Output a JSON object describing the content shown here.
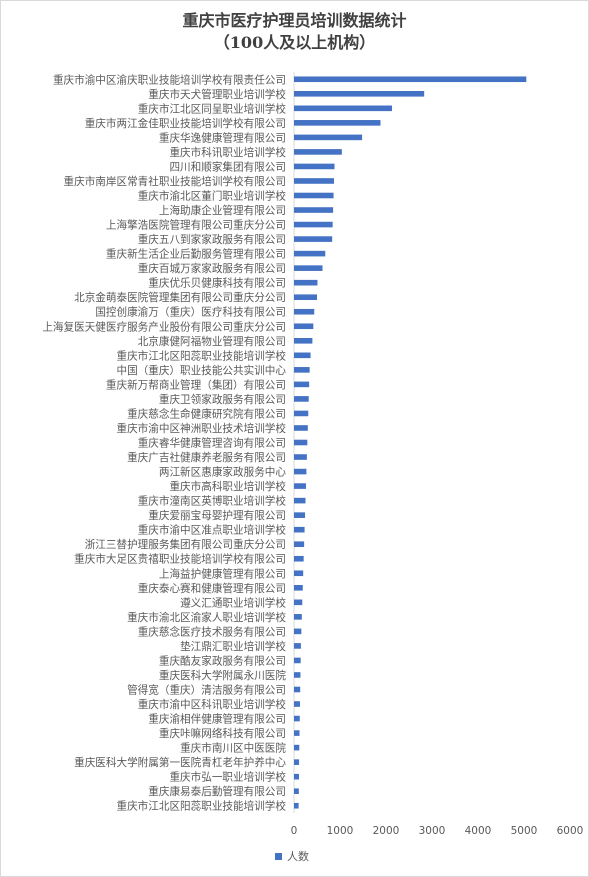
{
  "chart_data": {
    "type": "bar",
    "orientation": "horizontal",
    "title_line1": "重庆市医疗护理员培训数据统计",
    "title_line2": "（100人及以上机构）",
    "xlim": [
      0,
      6000
    ],
    "xticks": [
      "0",
      "1000",
      "2000",
      "3000",
      "4000",
      "5000",
      "6000"
    ],
    "grid": false,
    "legend_position": "bottom",
    "color": "#4472c4",
    "series": [
      {
        "name": "人数",
        "categories": [
          "重庆市渝中区渝庆职业技能培训学校有限责任公司",
          "重庆市天犬管理职业培训学校",
          "重庆市江北区同呈职业培训学校",
          "重庆市两江金佳职业技能培训学校有限公司",
          "重庆华逸健康管理有限公司",
          "重庆市科讯职业培训学校",
          "四川和顺家集团有限公司",
          "重庆市南岸区常青社职业技能培训学校有限公司",
          "重庆市渝北区董门职业培训学校",
          "上海助康企业管理有限公司",
          "上海擎浩医院管理有限公司重庆分公司",
          "重庆五八到家家政服务有限公司",
          "重庆新生活企业后勤服务管理有限公司",
          "重庆百城万家家政服务有限公司",
          "重庆优乐贝健康科技有限公司",
          "北京金萌泰医院管理集团有限公司重庆分公司",
          "国控创康渝万（重庆）医疗科技有限公司",
          "上海复医天健医疗服务产业股份有限公司重庆分公司",
          "北京康健阿福物业管理有限公司",
          "重庆市江北区阳蕊职业技能培训学校",
          "中国（重庆）职业技能公共实训中心",
          "重庆新万帮商业管理（集团）有限公司",
          "重庆卫领家政服务有限公司",
          "重庆慈念生命健康研究院有限公司",
          "重庆市渝中区神洲职业技术培训学校",
          "重庆睿华健康管理咨询有限公司",
          "重庆广吉社健康养老服务有限公司",
          "两江新区惠康家政服务中心",
          "重庆市高科职业培训学校",
          "重庆市潼南区英博职业培训学校",
          "重庆爱丽宝母婴护理有限公司",
          "重庆市渝中区准点职业培训学校",
          "浙江三替护理服务集团有限公司重庆分公司",
          "重庆市大足区贵禧职业技能培训学校有限公司",
          "上海益护健康管理有限公司",
          "重庆泰心赛和健康管理有限公司",
          "遵义汇通职业培训学校",
          "重庆市渝北区渝家人职业培训学校",
          "重庆慈念医疗技术服务有限公司",
          "垫江鼎汇职业培训学校",
          "重庆酷友家政服务有限公司",
          "重庆医科大学附属永川医院",
          "管得宽（重庆）清洁服务有限公司",
          "重庆市渝中区科讯职业培训学校",
          "重庆渝相伴健康管理有限公司",
          "重庆咔嘛网络科技有限公司",
          "重庆市南川区中医医院",
          "重庆医科大学附属第一医院青杠老年护养中心",
          "重庆市弘一职业培训学校",
          "重庆康易泰后勤管理有限公司",
          "重庆市江北区阳蕊职业技能培训学校"
        ],
        "values": [
          5050,
          2830,
          2130,
          1880,
          1480,
          1040,
          880,
          870,
          860,
          850,
          840,
          830,
          680,
          620,
          510,
          500,
          440,
          420,
          400,
          360,
          340,
          330,
          320,
          310,
          300,
          290,
          280,
          270,
          260,
          250,
          240,
          230,
          220,
          210,
          200,
          190,
          180,
          170,
          160,
          150,
          145,
          140,
          135,
          130,
          125,
          120,
          115,
          110,
          108,
          105,
          100
        ]
      }
    ]
  }
}
